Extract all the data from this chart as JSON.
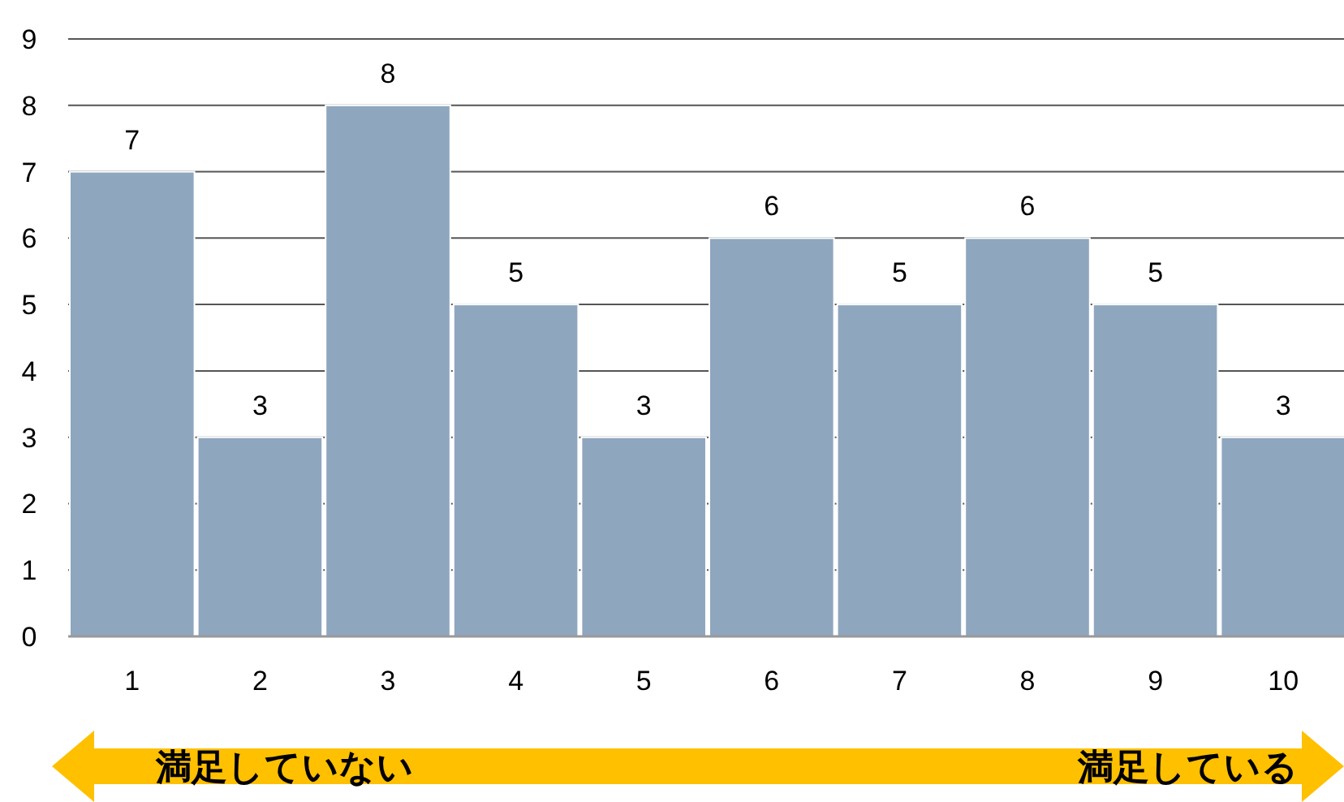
{
  "chart_data": {
    "type": "bar",
    "categories": [
      "1",
      "2",
      "3",
      "4",
      "5",
      "6",
      "7",
      "8",
      "9",
      "10"
    ],
    "values": [
      7,
      3,
      8,
      5,
      3,
      6,
      5,
      6,
      5,
      3
    ],
    "color": "#8fa6bf",
    "ylim": [
      0,
      9
    ],
    "yticks": [
      0,
      1,
      2,
      3,
      4,
      5,
      6,
      7,
      8,
      9
    ],
    "grid": "y",
    "data_labels": true,
    "annotations": [
      "満足していない",
      "満足している"
    ]
  }
}
